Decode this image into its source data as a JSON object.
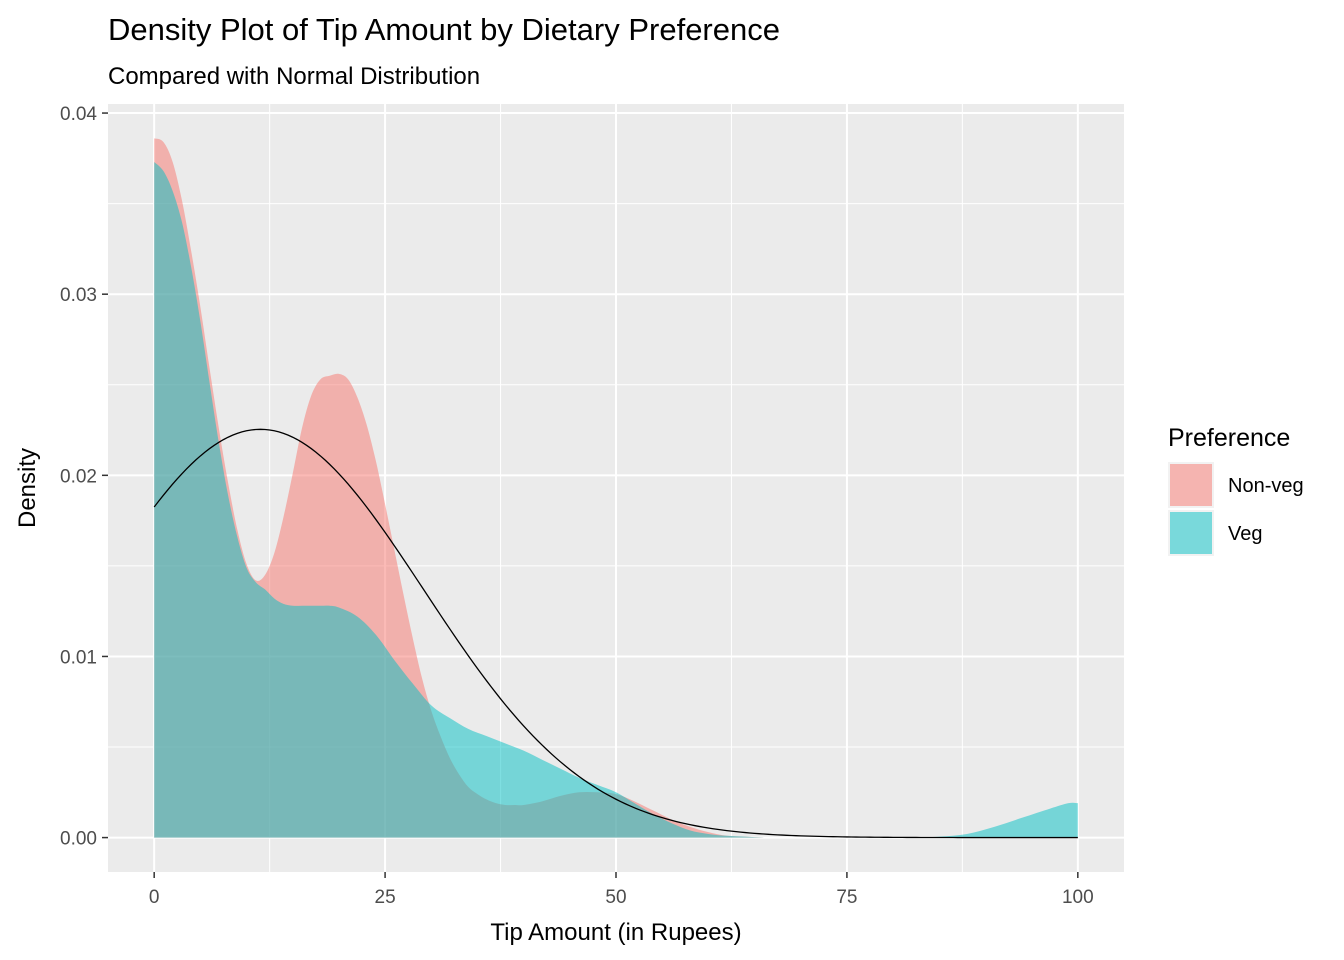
{
  "chart_data": {
    "type": "area",
    "title": "Density Plot of Tip Amount by Dietary Preference",
    "subtitle": "Compared with Normal Distribution",
    "xlabel": "Tip Amount (in Rupees)",
    "ylabel": "Density",
    "xlim": [
      -5,
      105
    ],
    "ylim": [
      -0.0019,
      0.0405
    ],
    "x_ticks": [
      0,
      25,
      50,
      75,
      100
    ],
    "y_ticks": [
      0.0,
      0.01,
      0.02,
      0.03,
      0.04
    ],
    "x_tick_labels": [
      "0",
      "25",
      "50",
      "75",
      "100"
    ],
    "y_tick_labels": [
      "0.00",
      "0.01",
      "0.02",
      "0.03",
      "0.04"
    ],
    "grid": true,
    "legend": {
      "title": "Preference",
      "position": "right",
      "entries": [
        {
          "label": "Non-veg",
          "color": "#F8766D"
        },
        {
          "label": "Veg",
          "color": "#00BFC4"
        }
      ]
    },
    "fill_opacity": 0.5,
    "series": [
      {
        "name": "Non-veg",
        "color": "#F8766D",
        "x": [
          0,
          1,
          2,
          3,
          4,
          5,
          6,
          7,
          8,
          9,
          10,
          11,
          12,
          13,
          14,
          15,
          16,
          17,
          18,
          19,
          20,
          21,
          22,
          23,
          24,
          25,
          26,
          27,
          28,
          29,
          30,
          31,
          32,
          33,
          34,
          35,
          36,
          37,
          38,
          39,
          40,
          42,
          44,
          46,
          48,
          50,
          52,
          54,
          56,
          58,
          60,
          62,
          64,
          66,
          68,
          70
        ],
        "y": [
          0.0386,
          0.0384,
          0.0373,
          0.0352,
          0.0324,
          0.0293,
          0.0259,
          0.0226,
          0.0196,
          0.017,
          0.0151,
          0.0142,
          0.0145,
          0.0157,
          0.0177,
          0.0201,
          0.0226,
          0.0244,
          0.0253,
          0.0255,
          0.0256,
          0.0253,
          0.0243,
          0.0228,
          0.0208,
          0.0184,
          0.0159,
          0.0134,
          0.011,
          0.0088,
          0.007,
          0.0056,
          0.0044,
          0.0035,
          0.0028,
          0.0024,
          0.0021,
          0.0019,
          0.0018,
          0.0018,
          0.0018,
          0.002,
          0.0023,
          0.0025,
          0.0025,
          0.0024,
          0.002,
          0.0015,
          0.001,
          0.0006,
          0.0003,
          0.0001,
          5e-05,
          0.0,
          0.0,
          0.0
        ]
      },
      {
        "name": "Veg",
        "color": "#00BFC4",
        "x": [
          0,
          1,
          2,
          3,
          4,
          5,
          6,
          7,
          8,
          9,
          10,
          11,
          12,
          13,
          14,
          15,
          16,
          17,
          18,
          19,
          20,
          22,
          24,
          26,
          28,
          30,
          32,
          34,
          36,
          38,
          40,
          42,
          44,
          46,
          48,
          50,
          52,
          54,
          56,
          58,
          60,
          62,
          64,
          66,
          68,
          70,
          74,
          78,
          82,
          85,
          88,
          91,
          94,
          97,
          99,
          100
        ],
        "y": [
          0.0373,
          0.0368,
          0.0357,
          0.034,
          0.0315,
          0.0285,
          0.0251,
          0.0218,
          0.0189,
          0.0166,
          0.0149,
          0.0141,
          0.0137,
          0.0132,
          0.0129,
          0.0128,
          0.0128,
          0.0128,
          0.0128,
          0.0128,
          0.0127,
          0.0122,
          0.0112,
          0.0098,
          0.0085,
          0.0073,
          0.0066,
          0.006,
          0.0056,
          0.0052,
          0.0048,
          0.0043,
          0.0038,
          0.0033,
          0.0029,
          0.0025,
          0.0019,
          0.0013,
          0.0008,
          0.0004,
          0.0002,
          0.0001,
          5e-05,
          0.0,
          0.0,
          0.0,
          0.0,
          0.0,
          0.0,
          5e-05,
          0.0002,
          0.0006,
          0.0011,
          0.0016,
          0.0019,
          0.0019
        ]
      }
    ],
    "normal_curve": {
      "mean": 11.5,
      "sd": 17.7,
      "x_range": [
        0,
        100
      ]
    }
  }
}
